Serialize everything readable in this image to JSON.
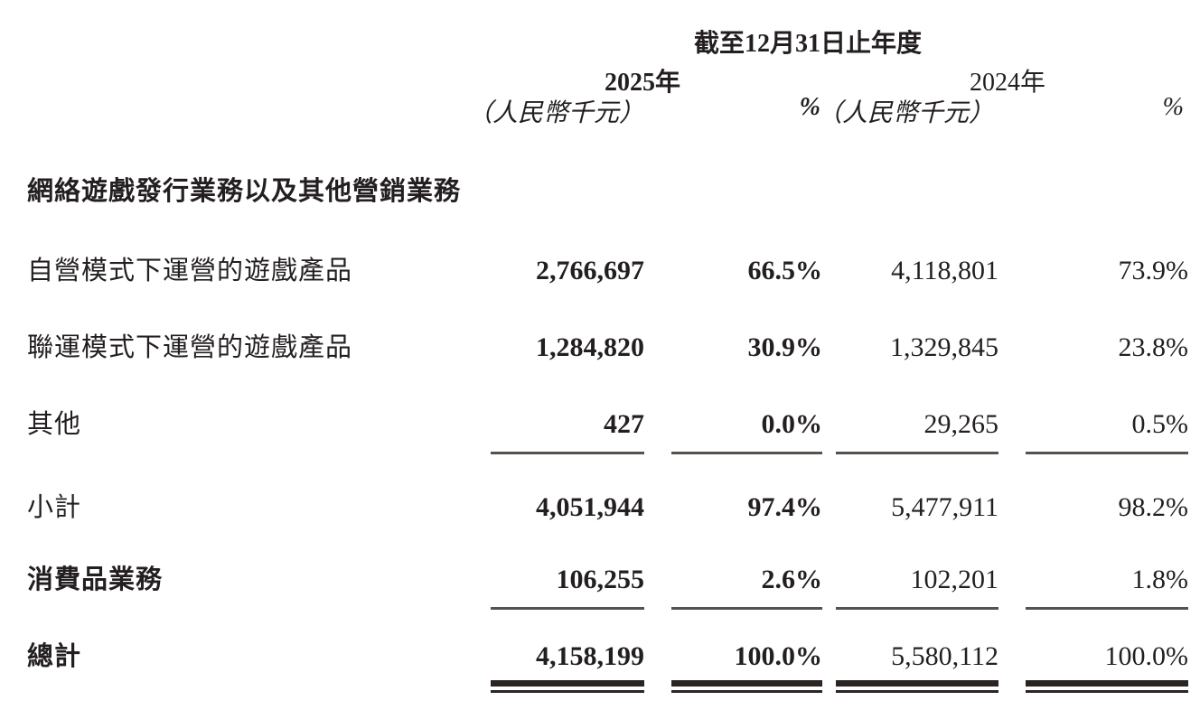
{
  "table": {
    "header": {
      "period_title": "截至12月31日止年度",
      "col_2025_year": "2025年",
      "col_2025_unit": "（人民幣千元）",
      "col_2025_pct": "%",
      "col_2024_year": "2024年",
      "col_2024_unit": "（人民幣千元）",
      "col_2024_pct": "%"
    },
    "section_header": "網絡遊戲發行業務以及其他營銷業務",
    "rows": [
      {
        "label": "自營模式下運營的遊戲產品",
        "v2025": "2,766,697",
        "p2025": "66.5%",
        "v2024": "4,118,801",
        "p2024": "73.9%"
      },
      {
        "label": "聯運模式下運營的遊戲產品",
        "v2025": "1,284,820",
        "p2025": "30.9%",
        "v2024": "1,329,845",
        "p2024": "23.8%"
      },
      {
        "label": "其他",
        "v2025": "427",
        "p2025": "0.0%",
        "v2024": "29,265",
        "p2024": "0.5%"
      },
      {
        "label": "小計",
        "v2025": "4,051,944",
        "p2025": "97.4%",
        "v2024": "5,477,911",
        "p2024": "98.2%"
      },
      {
        "label": "消費品業務",
        "v2025": "106,255",
        "p2025": "2.6%",
        "v2024": "102,201",
        "p2024": "1.8%"
      },
      {
        "label": "總計",
        "v2025": "4,158,199",
        "p2025": "100.0%",
        "v2024": "5,580,112",
        "p2024": "100.0%"
      }
    ]
  },
  "colors": {
    "text": "#231f20",
    "rule": "#57514e",
    "total_rule": "#2b2422",
    "background": "#ffffff"
  }
}
